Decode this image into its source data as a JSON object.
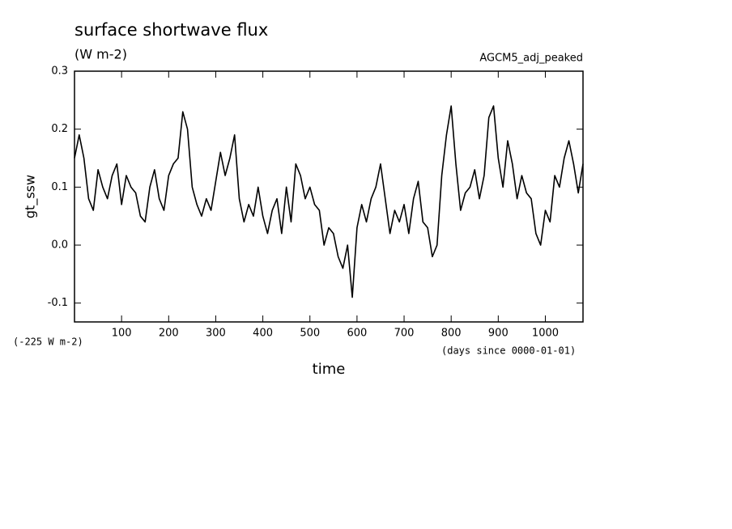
{
  "chart_data": {
    "type": "line",
    "title": "surface shortwave flux",
    "subtitle": "(W m-2)",
    "annotation": "AGCM5_adj_peaked",
    "y_label": "gt_ssw",
    "y_offset_note": "(-225 W m-2)",
    "x_units": "(days since 0000-01-01)",
    "x_label": "time",
    "xlim": [
      0,
      1080
    ],
    "ylim": [
      -0.1325,
      0.3
    ],
    "xticks": [
      100,
      200,
      300,
      400,
      500,
      600,
      700,
      800,
      900,
      1000
    ],
    "yticks": [
      -0.1,
      {
        "value": 0,
        "label": "0.0"
      },
      0.1,
      0.2,
      0.3
    ],
    "x": [
      0,
      10,
      20,
      30,
      40,
      50,
      60,
      70,
      80,
      90,
      100,
      110,
      120,
      130,
      140,
      150,
      160,
      170,
      180,
      190,
      200,
      210,
      220,
      230,
      240,
      250,
      260,
      270,
      280,
      290,
      300,
      310,
      320,
      330,
      340,
      350,
      360,
      370,
      380,
      390,
      400,
      410,
      420,
      430,
      440,
      450,
      460,
      470,
      480,
      490,
      500,
      510,
      520,
      530,
      540,
      550,
      560,
      570,
      580,
      590,
      600,
      610,
      620,
      630,
      640,
      650,
      660,
      670,
      680,
      690,
      700,
      710,
      720,
      730,
      740,
      750,
      760,
      770,
      780,
      790,
      800,
      810,
      820,
      830,
      840,
      850,
      860,
      870,
      880,
      890,
      900,
      910,
      920,
      930,
      940,
      950,
      960,
      970,
      980,
      990,
      1000,
      1010,
      1020,
      1030,
      1040,
      1050,
      1060,
      1070,
      1080
    ],
    "series": [
      {
        "color": "#000000",
        "values": [
          0.15,
          0.19,
          0.15,
          0.08,
          0.06,
          0.13,
          0.1,
          0.08,
          0.12,
          0.14,
          0.07,
          0.12,
          0.1,
          0.09,
          0.05,
          0.04,
          0.1,
          0.13,
          0.08,
          0.06,
          0.12,
          0.14,
          0.15,
          0.23,
          0.2,
          0.1,
          0.07,
          0.05,
          0.08,
          0.06,
          0.11,
          0.16,
          0.12,
          0.15,
          0.19,
          0.08,
          0.04,
          0.07,
          0.05,
          0.1,
          0.05,
          0.02,
          0.06,
          0.08,
          0.02,
          0.1,
          0.04,
          0.14,
          0.12,
          0.08,
          0.1,
          0.07,
          0.06,
          0.0,
          0.03,
          0.02,
          -0.02,
          -0.04,
          0.0,
          -0.09,
          0.03,
          0.07,
          0.04,
          0.08,
          0.1,
          0.14,
          0.08,
          0.02,
          0.06,
          0.04,
          0.07,
          0.02,
          0.08,
          0.11,
          0.04,
          0.03,
          -0.02,
          0.0,
          0.12,
          0.19,
          0.24,
          0.14,
          0.06,
          0.09,
          0.1,
          0.13,
          0.08,
          0.12,
          0.22,
          0.24,
          0.15,
          0.1,
          0.18,
          0.14,
          0.08,
          0.12,
          0.09,
          0.08,
          0.02,
          0.0,
          0.06,
          0.04,
          0.12,
          0.1,
          0.15,
          0.18,
          0.14,
          0.09,
          0.14
        ]
      }
    ]
  }
}
